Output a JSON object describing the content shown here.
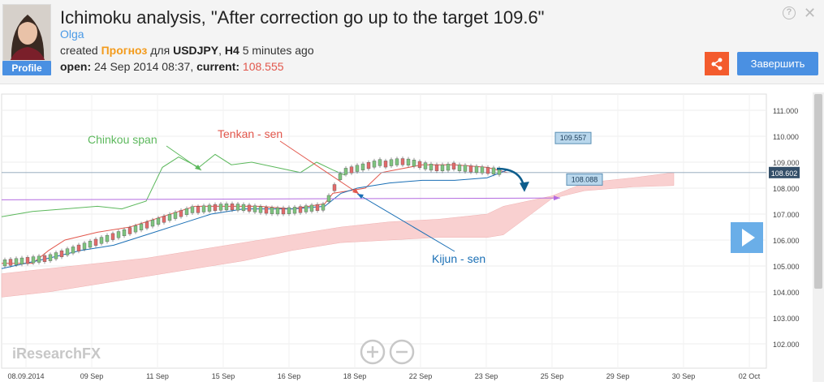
{
  "header": {
    "title": "Ichimoku analysis, \"After correction go up to the target 109.6\"",
    "author": "Olga",
    "profile_label": "Profile",
    "created_prefix": "created",
    "forecast_word": "Прогноз",
    "for_word": "для",
    "symbol": "USDJPY",
    "timeframe": "H4",
    "ago": "5 minutes ago",
    "open_label": "open:",
    "open_value": "24 Sep 2014 08:37,",
    "current_label": "current:",
    "current_value": "108.555",
    "finish_label": "Завершить",
    "help_glyph": "?",
    "close_glyph": "✕"
  },
  "chart_data": {
    "type": "line",
    "ylim": [
      101.5,
      111.5
    ],
    "y_ticks": [
      "111.000",
      "110.000",
      "109.000",
      "108.000",
      "107.000",
      "106.000",
      "105.000",
      "104.000",
      "103.000",
      "102.000"
    ],
    "x_ticks": [
      "08.09.2014",
      "09 Sep",
      "11 Sep",
      "15 Sep",
      "16 Sep",
      "18 Sep",
      "22 Sep",
      "23 Sep",
      "25 Sep",
      "29 Sep",
      "30 Sep",
      "02 Oct"
    ],
    "current_price_label": "108.602",
    "target_label": "109.557",
    "level_label": "108.088",
    "annotations": [
      "Chinkou span",
      "Tenkan - sen",
      "Kijun - sen"
    ],
    "watermark": "iResearchFX",
    "colors": {
      "chinkou": "#5cb85c",
      "tenkan": "#e2574c",
      "kijun": "#1a6fb5",
      "cloud": "#f9d0d0",
      "level": "#b46be0",
      "arrow": "#0d5d8c"
    }
  }
}
